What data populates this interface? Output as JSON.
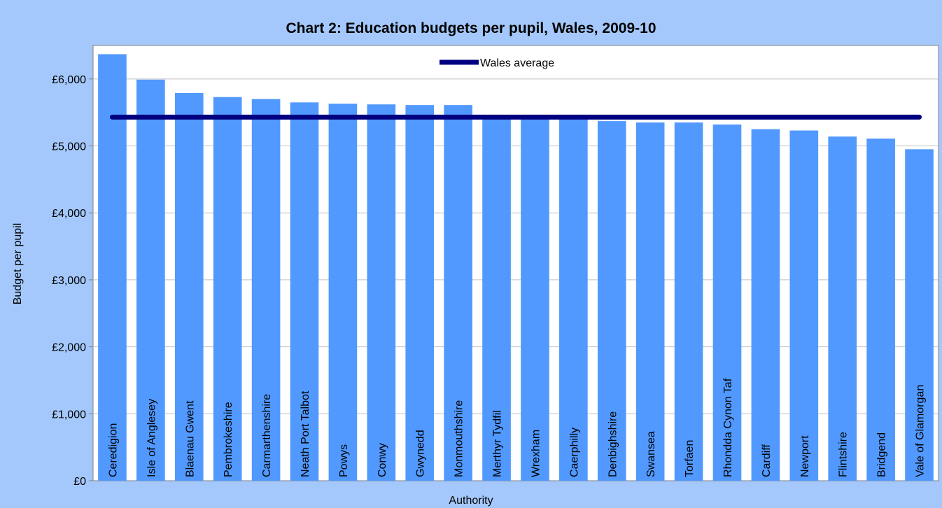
{
  "chart_data": {
    "type": "bar",
    "title": "Chart 2: Education budgets per pupil, Wales, 2009-10",
    "xlabel": "Authority",
    "ylabel": "Budget per pupil",
    "ylim": [
      0,
      6500
    ],
    "yticks": [
      "£0",
      "£1,000",
      "£2,000",
      "£3,000",
      "£4,000",
      "£5,000",
      "£6,000"
    ],
    "grid": "horizontal",
    "legend_position": "top-center",
    "categories": [
      "Ceredigion",
      "Isle of Anglesey",
      "Blaenau Gwent",
      "Pembrokeshire",
      "Carmarthenshire",
      "Neath Port Talbot",
      "Powys",
      "Conwy",
      "Gwynedd",
      "Monmouthshire",
      "Merthyr Tydfil",
      "Wrexham",
      "Caerphilly",
      "Denbighshire",
      "Swansea",
      "Torfaen",
      "Rhondda Cynon Taf",
      "Cardiff",
      "Newport",
      "Flintshire",
      "Bridgend",
      "Vale of Glamorgan"
    ],
    "series": [
      {
        "values": [
          6370,
          5990,
          5790,
          5730,
          5700,
          5650,
          5630,
          5620,
          5610,
          5610,
          5430,
          5420,
          5410,
          5370,
          5350,
          5350,
          5320,
          5250,
          5230,
          5140,
          5110,
          4950
        ],
        "color": "#5199ff"
      }
    ],
    "reference_lines": [
      {
        "name": "Wales average",
        "value": 5430,
        "color": "#000080"
      }
    ]
  }
}
